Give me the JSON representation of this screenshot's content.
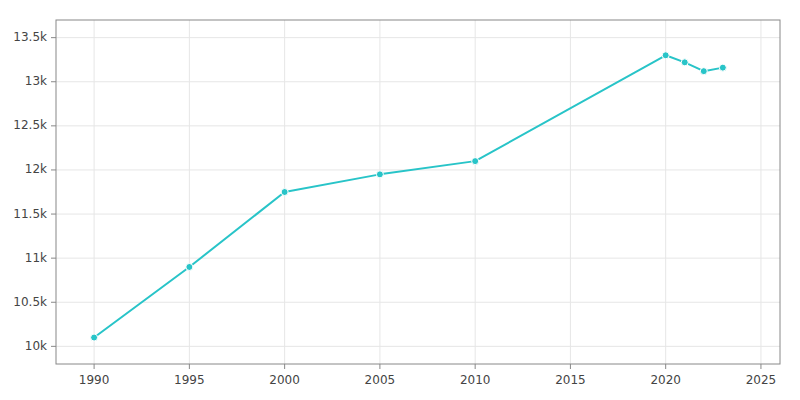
{
  "chart_data": {
    "type": "line",
    "x": [
      1990,
      1995,
      2000,
      2005,
      2010,
      2020,
      2021,
      2022,
      2023
    ],
    "values": [
      10100,
      10900,
      11750,
      11950,
      12100,
      13300,
      13220,
      13120,
      13160
    ],
    "color": "#28c4c8",
    "marker": "circle",
    "xlim": [
      1988,
      2026
    ],
    "ylim": [
      9800,
      13700
    ],
    "xticks": [
      1990,
      1995,
      2000,
      2005,
      2010,
      2015,
      2020,
      2025
    ],
    "yticks": [
      {
        "value": 10000,
        "label": "10k"
      },
      {
        "value": 10500,
        "label": "10.5k"
      },
      {
        "value": 11000,
        "label": "11k"
      },
      {
        "value": 11500,
        "label": "11.5k"
      },
      {
        "value": 12000,
        "label": "12k"
      },
      {
        "value": 12500,
        "label": "12.5k"
      },
      {
        "value": 13000,
        "label": "13k"
      },
      {
        "value": 13500,
        "label": "13.5k"
      }
    ],
    "grid": true
  }
}
